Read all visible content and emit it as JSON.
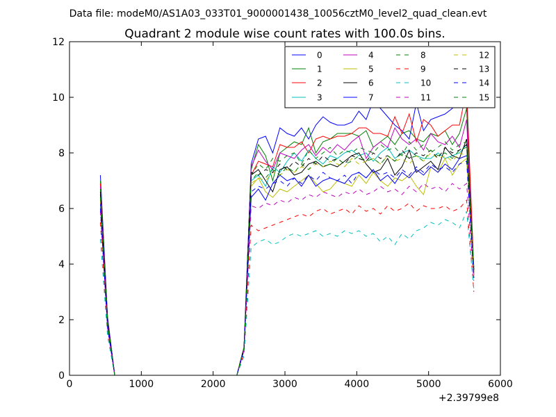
{
  "chart_data": {
    "type": "line",
    "suptitle": "Data file: modeM0/AS1A03_033T01_9000001438_10056cztM0_level2_quad_clean.evt",
    "title": "Quadrant 2 module wise count rates with 100.0s bins.",
    "xlabel": "",
    "ylabel": "",
    "x_offset_label": "+2.39799e8",
    "xlim": [
      0,
      6000
    ],
    "ylim": [
      0,
      12
    ],
    "xticks": [
      "0",
      "1000",
      "2000",
      "3000",
      "4000",
      "5000",
      "6000"
    ],
    "yticks": [
      "0",
      "2",
      "4",
      "6",
      "8",
      "10",
      "12"
    ],
    "grid": false,
    "legend_position": "top-right",
    "x": [
      430,
      530,
      630,
      730,
      830,
      930,
      1030,
      1130,
      1230,
      1330,
      1430,
      1530,
      1630,
      1730,
      1830,
      1930,
      2030,
      2130,
      2230,
      2330,
      2430,
      2530,
      2630,
      2730,
      2830,
      2930,
      3030,
      3130,
      3230,
      3330,
      3430,
      3530,
      3630,
      3730,
      3830,
      3930,
      4030,
      4130,
      4230,
      4330,
      4430,
      4530,
      4630,
      4730,
      4830,
      4930,
      5030,
      5130,
      5230,
      5330,
      5430,
      5530,
      5630
    ],
    "series": [
      {
        "name": "0",
        "color": "#0000ff",
        "dash": "solid",
        "values": [
          7.2,
          2.1,
          0,
          0,
          0,
          0,
          0,
          0,
          0,
          0,
          0,
          0,
          0,
          0,
          0,
          0,
          0,
          0,
          0,
          0,
          1,
          7.6,
          8.5,
          8.6,
          8.0,
          8.9,
          8.7,
          8.6,
          8.9,
          8.5,
          9.0,
          9.3,
          9.1,
          9.0,
          9.0,
          9.1,
          9.5,
          9.2,
          9.9,
          9.6,
          9.3,
          9.0,
          8.8,
          8.5,
          9.8,
          8.8,
          9.2,
          9.3,
          9.4,
          9.6,
          10.0,
          9.8,
          3.6
        ]
      },
      {
        "name": "1",
        "color": "#008000",
        "dash": "solid",
        "values": [
          7.0,
          2.0,
          0,
          0,
          0,
          0,
          0,
          0,
          0,
          0,
          0,
          0,
          0,
          0,
          0,
          0,
          0,
          0,
          0,
          0,
          1,
          7.4,
          8.3,
          7.9,
          7.0,
          8.0,
          8.2,
          8.4,
          8.3,
          8.9,
          8.0,
          8.4,
          8.5,
          8.7,
          8.7,
          8.7,
          8.6,
          8.8,
          8.2,
          8.4,
          8.6,
          8.3,
          8.7,
          8.8,
          8.5,
          8.4,
          8.7,
          8.6,
          8.8,
          8.3,
          8.7,
          9.6,
          3.7
        ]
      },
      {
        "name": "2",
        "color": "#ff0000",
        "dash": "solid",
        "values": [
          6.9,
          2.0,
          0,
          0,
          0,
          0,
          0,
          0,
          0,
          0,
          0,
          0,
          0,
          0,
          0,
          0,
          0,
          0,
          0,
          0,
          1,
          7.2,
          7.7,
          7.6,
          7.5,
          8.3,
          8.2,
          8.2,
          8.4,
          8.0,
          8.5,
          8.6,
          8.5,
          8.6,
          8.6,
          8.7,
          8.9,
          8.9,
          8.7,
          8.7,
          8.6,
          9.3,
          8.7,
          9.4,
          8.4,
          9.2,
          9.0,
          8.6,
          8.8,
          9.0,
          9.0,
          10.3,
          3.8
        ]
      },
      {
        "name": "3",
        "color": "#00bfbf",
        "dash": "solid",
        "values": [
          6.6,
          1.9,
          0,
          0,
          0,
          0,
          0,
          0,
          0,
          0,
          0,
          0,
          0,
          0,
          0,
          0,
          0,
          0,
          0,
          0,
          1,
          7.0,
          7.2,
          6.8,
          7.5,
          7.3,
          7.7,
          8.0,
          7.7,
          8.1,
          7.8,
          7.6,
          7.9,
          7.8,
          8.0,
          8.1,
          7.9,
          8.0,
          7.7,
          8.0,
          8.2,
          7.8,
          8.0,
          8.1,
          7.9,
          7.8,
          7.8,
          8.0,
          7.8,
          7.9,
          8.0,
          8.3,
          3.9
        ]
      },
      {
        "name": "4",
        "color": "#bf00bf",
        "dash": "solid",
        "values": [
          6.8,
          2.0,
          0,
          0,
          0,
          0,
          0,
          0,
          0,
          0,
          0,
          0,
          0,
          0,
          0,
          0,
          0,
          0,
          0,
          0,
          1,
          7.5,
          8.1,
          7.7,
          7.4,
          8.0,
          7.9,
          7.8,
          8.1,
          8.3,
          7.9,
          8.2,
          8.0,
          8.3,
          8.1,
          8.4,
          8.6,
          7.8,
          8.2,
          8.4,
          8.2,
          8.9,
          8.5,
          8.3,
          8.5,
          8.1,
          8.7,
          8.4,
          8.3,
          8.6,
          8.2,
          9.2,
          3.6
        ]
      },
      {
        "name": "5",
        "color": "#bfbf00",
        "dash": "solid",
        "values": [
          6.4,
          1.8,
          0,
          0,
          0,
          0,
          0,
          0,
          0,
          0,
          0,
          0,
          0,
          0,
          0,
          0,
          0,
          0,
          0,
          0,
          1,
          6.8,
          7.1,
          6.6,
          6.4,
          6.7,
          6.6,
          6.8,
          7.0,
          7.2,
          6.9,
          6.6,
          6.7,
          7.0,
          6.9,
          6.8,
          7.2,
          6.9,
          7.3,
          7.0,
          6.8,
          7.1,
          7.0,
          7.2,
          6.8,
          6.5,
          7.5,
          7.3,
          7.8,
          7.2,
          7.6,
          7.8,
          3.7
        ]
      },
      {
        "name": "6",
        "color": "#000000",
        "dash": "solid",
        "values": [
          6.5,
          1.9,
          0,
          0,
          0,
          0,
          0,
          0,
          0,
          0,
          0,
          0,
          0,
          0,
          0,
          0,
          0,
          0,
          0,
          0,
          1,
          7.2,
          7.4,
          7.0,
          6.6,
          7.4,
          7.5,
          7.2,
          7.3,
          7.6,
          7.7,
          7.5,
          7.6,
          7.5,
          7.7,
          7.9,
          8.0,
          7.6,
          7.3,
          7.4,
          7.8,
          7.2,
          7.5,
          8.1,
          7.3,
          7.5,
          7.7,
          7.4,
          8.2,
          7.9,
          7.8,
          8.5,
          3.8
        ]
      },
      {
        "name": "7",
        "color": "#0000ff",
        "dash": "solid",
        "values": [
          6.2,
          1.8,
          0,
          0,
          0,
          0,
          0,
          0,
          0,
          0,
          0,
          0,
          0,
          0,
          0,
          0,
          0,
          0,
          0,
          0,
          1,
          6.4,
          6.7,
          6.3,
          6.9,
          7.2,
          7.0,
          7.1,
          6.8,
          7.2,
          6.8,
          7.0,
          7.1,
          7.0,
          6.9,
          7.2,
          7.3,
          7.1,
          7.4,
          7.0,
          7.2,
          6.9,
          7.3,
          7.1,
          7.4,
          7.2,
          7.5,
          7.3,
          7.6,
          7.4,
          7.8,
          7.9,
          3.5
        ]
      },
      {
        "name": "8",
        "color": "#008000",
        "dash": "dashed",
        "values": [
          6.7,
          2.0,
          0,
          0,
          0,
          0,
          0,
          0,
          0,
          0,
          0,
          0,
          0,
          0,
          0,
          0,
          0,
          0,
          0,
          0,
          1,
          7.2,
          7.6,
          7.4,
          7.8,
          7.7,
          7.9,
          8.0,
          7.6,
          8.1,
          7.8,
          8.0,
          8.2,
          7.9,
          8.1,
          8.0,
          8.2,
          8.1,
          8.0,
          8.3,
          8.1,
          8.2,
          7.9,
          8.4,
          8.1,
          8.3,
          8.0,
          8.2,
          8.4,
          8.1,
          8.3,
          8.4,
          3.9
        ]
      },
      {
        "name": "9",
        "color": "#ff0000",
        "dash": "dashed",
        "values": [
          5.5,
          1.6,
          0,
          0,
          0,
          0,
          0,
          0,
          0,
          0,
          0,
          0,
          0,
          0,
          0,
          0,
          0,
          0,
          0,
          0,
          0.8,
          5.4,
          5.2,
          5.3,
          5.4,
          5.5,
          5.6,
          5.7,
          5.8,
          5.7,
          5.9,
          6.0,
          5.8,
          5.9,
          6.0,
          5.8,
          6.1,
          5.9,
          6.0,
          5.8,
          6.1,
          5.9,
          6.0,
          6.2,
          5.9,
          6.1,
          6.0,
          6.0,
          6.1,
          5.9,
          6.0,
          6.3,
          3.0
        ]
      },
      {
        "name": "10",
        "color": "#00bfbf",
        "dash": "dashed",
        "values": [
          4.9,
          1.4,
          0,
          0,
          0,
          0,
          0,
          0,
          0,
          0,
          0,
          0,
          0,
          0,
          0,
          0,
          0,
          0,
          0,
          0,
          0.7,
          4.6,
          4.8,
          4.9,
          4.7,
          4.8,
          5.0,
          5.1,
          5.0,
          5.1,
          5.2,
          5.0,
          5.1,
          5.0,
          5.2,
          5.1,
          5.2,
          5.0,
          5.1,
          4.8,
          5.0,
          4.7,
          5.1,
          4.9,
          5.2,
          5.3,
          5.5,
          5.4,
          5.6,
          5.5,
          5.3,
          5.9,
          3.1
        ]
      },
      {
        "name": "11",
        "color": "#bf00bf",
        "dash": "dashed",
        "values": [
          5.9,
          1.7,
          0,
          0,
          0,
          0,
          0,
          0,
          0,
          0,
          0,
          0,
          0,
          0,
          0,
          0,
          0,
          0,
          0,
          0,
          0.9,
          6.1,
          6.0,
          6.2,
          6.1,
          6.3,
          6.2,
          6.4,
          6.3,
          6.5,
          6.4,
          6.6,
          6.5,
          6.4,
          6.6,
          6.5,
          6.7,
          6.5,
          6.6,
          6.8,
          6.6,
          6.7,
          6.5,
          6.8,
          6.6,
          6.9,
          6.7,
          6.8,
          6.6,
          6.9,
          6.7,
          6.9,
          3.4
        ]
      },
      {
        "name": "12",
        "color": "#bfbf00",
        "dash": "dashed",
        "values": [
          6.3,
          1.8,
          0,
          0,
          0,
          0,
          0,
          0,
          0,
          0,
          0,
          0,
          0,
          0,
          0,
          0,
          0,
          0,
          0,
          0,
          1,
          6.9,
          7.1,
          7.0,
          7.3,
          7.2,
          7.4,
          7.3,
          7.5,
          7.4,
          7.6,
          7.5,
          7.7,
          7.6,
          7.5,
          7.8,
          7.6,
          7.7,
          7.8,
          7.6,
          7.9,
          7.7,
          7.8,
          7.6,
          7.9,
          7.7,
          8.0,
          7.8,
          7.9,
          7.7,
          8.0,
          7.9,
          3.6
        ]
      },
      {
        "name": "13",
        "color": "#000000",
        "dash": "dashed",
        "values": [
          6.6,
          1.9,
          0,
          0,
          0,
          0,
          0,
          0,
          0,
          0,
          0,
          0,
          0,
          0,
          0,
          0,
          0,
          0,
          0,
          0,
          1,
          7.3,
          7.2,
          7.4,
          7.3,
          7.6,
          7.4,
          7.7,
          7.5,
          7.8,
          7.6,
          7.9,
          7.7,
          7.8,
          7.6,
          7.9,
          7.8,
          7.7,
          8.0,
          7.8,
          7.9,
          7.7,
          8.1,
          7.8,
          8.0,
          7.9,
          8.1,
          7.8,
          8.2,
          8.0,
          8.1,
          8.3,
          3.7
        ]
      },
      {
        "name": "14",
        "color": "#0000ff",
        "dash": "dashed",
        "values": [
          6.0,
          1.7,
          0,
          0,
          0,
          0,
          0,
          0,
          0,
          0,
          0,
          0,
          0,
          0,
          0,
          0,
          0,
          0,
          0,
          0,
          0.9,
          6.6,
          6.8,
          6.7,
          6.9,
          7.0,
          6.8,
          7.1,
          6.9,
          7.2,
          7.0,
          7.3,
          7.1,
          7.0,
          7.2,
          6.9,
          7.3,
          7.1,
          7.4,
          7.2,
          7.3,
          7.1,
          7.4,
          7.2,
          7.5,
          7.3,
          7.6,
          7.4,
          7.5,
          7.3,
          7.6,
          7.7,
          3.5
        ]
      },
      {
        "name": "15",
        "color": "#008000",
        "dash": "dashed",
        "values": [
          6.4,
          1.8,
          0,
          0,
          0,
          0,
          0,
          0,
          0,
          0,
          0,
          0,
          0,
          0,
          0,
          0,
          0,
          0,
          0,
          0,
          1,
          7.0,
          7.3,
          7.1,
          7.4,
          7.2,
          7.5,
          7.3,
          7.6,
          7.4,
          7.7,
          7.5,
          7.6,
          7.8,
          7.6,
          7.7,
          7.9,
          7.7,
          7.8,
          7.6,
          7.9,
          7.7,
          8.0,
          7.8,
          7.9,
          7.7,
          8.1,
          7.9,
          8.0,
          7.8,
          8.1,
          8.2,
          3.8
        ]
      }
    ]
  }
}
